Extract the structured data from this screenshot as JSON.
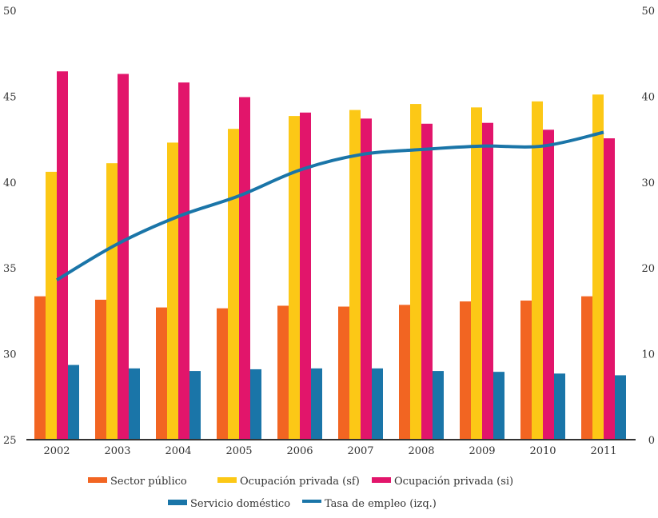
{
  "chart_data": {
    "type": "bar",
    "categories": [
      "2002",
      "2003",
      "2004",
      "2005",
      "2006",
      "2007",
      "2008",
      "2009",
      "2010",
      "2011"
    ],
    "left_axis": {
      "ylim": [
        25,
        50
      ],
      "ticks": [
        25,
        30,
        35,
        40,
        45,
        50
      ]
    },
    "right_axis": {
      "ylim": [
        0,
        50
      ],
      "ticks": [
        0,
        10,
        20,
        30,
        40,
        50
      ]
    },
    "grid": false,
    "legend_placement": "bottom",
    "series": [
      {
        "name": "Sector público",
        "type": "bar",
        "axis": "right",
        "color": "#f26522",
        "values": [
          16.7,
          16.3,
          15.4,
          15.3,
          15.6,
          15.5,
          15.7,
          16.1,
          16.2,
          16.7
        ]
      },
      {
        "name": "Ocupación privada (sf)",
        "type": "bar",
        "axis": "right",
        "color": "#fcc816",
        "values": [
          31.2,
          32.2,
          34.6,
          36.2,
          37.7,
          38.4,
          39.1,
          38.7,
          39.4,
          40.2
        ]
      },
      {
        "name": "Ocupación privada (si)",
        "type": "bar",
        "axis": "right",
        "color": "#e2156b",
        "values": [
          42.9,
          42.6,
          41.6,
          39.9,
          38.1,
          37.4,
          36.8,
          36.9,
          36.1,
          35.1
        ]
      },
      {
        "name": "Servicio doméstico",
        "type": "bar",
        "axis": "right",
        "color": "#1a75a8",
        "values": [
          8.7,
          8.3,
          8.0,
          8.2,
          8.3,
          8.3,
          8.0,
          7.9,
          7.7,
          7.5
        ]
      },
      {
        "name": "Tasa de empleo (izq.)",
        "type": "line",
        "axis": "left",
        "color": "#1a75a8",
        "values": [
          34.3,
          36.4,
          38.0,
          39.2,
          40.7,
          41.6,
          41.9,
          42.1,
          42.1,
          42.9
        ]
      }
    ]
  }
}
